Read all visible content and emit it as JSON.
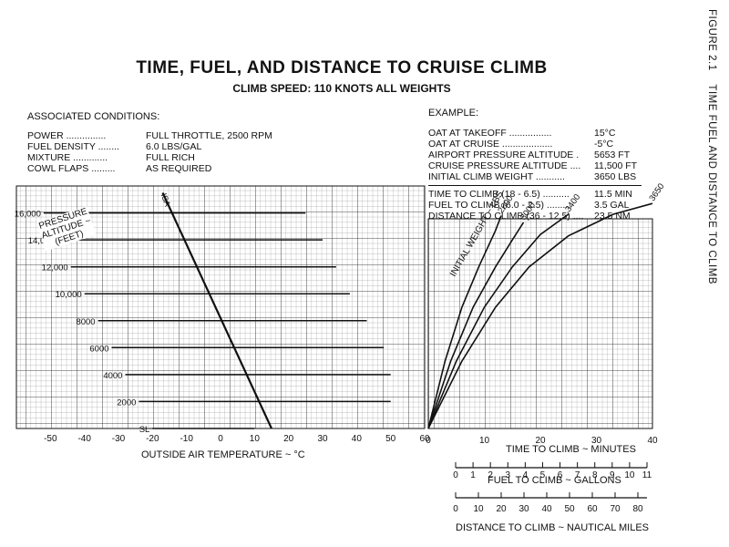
{
  "figure_side": {
    "number": "FIGURE 2.1",
    "caption": "TIME FUEL AND DISTANCE TO CLIMB"
  },
  "header": {
    "title": "TIME, FUEL, AND DISTANCE TO CRUISE CLIMB",
    "subtitle": "CLIMB SPEED: 110 KNOTS  ALL WEIGHTS"
  },
  "associated_conditions": {
    "heading": "ASSOCIATED CONDITIONS:",
    "rows": [
      {
        "label": "POWER ...............",
        "value": "FULL THROTTLE, 2500 RPM"
      },
      {
        "label": "FUEL DENSITY ........",
        "value": "6.0 LBS/GAL"
      },
      {
        "label": "MIXTURE .............",
        "value": "FULL RICH"
      },
      {
        "label": "COWL FLAPS .........",
        "value": "AS REQUIRED"
      }
    ]
  },
  "example": {
    "heading": "EXAMPLE:",
    "rows": [
      {
        "label": "OAT AT TAKEOFF ................",
        "value": "15°C"
      },
      {
        "label": "OAT AT CRUISE ...................",
        "value": "-5°C"
      },
      {
        "label": "AIRPORT PRESSURE ALTITUDE .",
        "value": "5653 FT"
      },
      {
        "label": "CRUISE PRESSURE ALTITUDE ....",
        "value": "11,500 FT"
      },
      {
        "label": "INITIAL CLIMB WEIGHT ...........",
        "value": "3650 LBS"
      }
    ],
    "results": [
      {
        "label": "TIME TO CLIMB (18 - 6.5) ..........",
        "value": "11.5 MIN"
      },
      {
        "label": "FUEL TO CLIMB (6.0 - 2.5) .........",
        "value": "3.5 GAL"
      },
      {
        "label": "DISTANCE TO CLIMB (36 - 12.5) ....",
        "value": "23.5 NM"
      }
    ]
  },
  "chart_data": [
    {
      "type": "line",
      "panel": "oat_vs_pressure_altitude",
      "xlabel": "OUTSIDE AIR TEMPERATURE ~ °C",
      "ylabel": "PRESSURE ALTITUDE ~ (FEET)",
      "x_ticks": [
        "-50",
        "-40",
        "-30",
        "-20",
        "-10",
        "0",
        "10",
        "20",
        "30",
        "40",
        "50",
        "60"
      ],
      "altitude_labels": [
        "SL",
        "2000",
        "4000",
        "6000",
        "8000",
        "10,000",
        "12,000",
        "14,000",
        "16,000"
      ],
      "isa_label": "ISA",
      "series": [
        {
          "name": "SL",
          "points": [
            [
              -20,
              0
            ],
            [
              10,
              0
            ]
          ]
        },
        {
          "name": "2000",
          "points": [
            [
              -24,
              2000
            ],
            [
              50,
              2000
            ]
          ]
        },
        {
          "name": "4000",
          "points": [
            [
              -28,
              4000
            ],
            [
              50,
              4000
            ]
          ]
        },
        {
          "name": "6000",
          "points": [
            [
              -32,
              6000
            ],
            [
              48,
              6000
            ]
          ]
        },
        {
          "name": "8000",
          "points": [
            [
              -36,
              8000
            ],
            [
              43,
              8000
            ]
          ]
        },
        {
          "name": "10,000",
          "points": [
            [
              -40,
              10000
            ],
            [
              38,
              10000
            ]
          ]
        },
        {
          "name": "12,000",
          "points": [
            [
              -44,
              12000
            ],
            [
              34,
              12000
            ]
          ]
        },
        {
          "name": "14,000",
          "points": [
            [
              -48,
              14000
            ],
            [
              30,
              14000
            ]
          ]
        },
        {
          "name": "16,000",
          "points": [
            [
              -52,
              16000
            ],
            [
              25,
              16000
            ]
          ]
        },
        {
          "name": "ISA",
          "points": [
            [
              -17,
              17500
            ],
            [
              15,
              0
            ]
          ]
        }
      ],
      "xlim": [
        -60,
        60
      ],
      "ylim": [
        0,
        18000
      ]
    },
    {
      "type": "line",
      "panel": "weight_to_time_to_climb",
      "title": "INITIAL WEIGHT ~ LBS",
      "xlabel": "TIME TO CLIMB ~ MINUTES",
      "x_ticks": [
        "0",
        "10",
        "20",
        "30",
        "40"
      ],
      "series": [
        {
          "name": "2600",
          "points": [
            [
              0,
              0
            ],
            [
              3,
              5000
            ],
            [
              6,
              9000
            ],
            [
              9,
              12000
            ],
            [
              12,
              14700
            ],
            [
              13,
              15800
            ]
          ]
        },
        {
          "name": "3000",
          "points": [
            [
              0,
              0
            ],
            [
              4,
              5000
            ],
            [
              8,
              9000
            ],
            [
              12,
              12000
            ],
            [
              15,
              14000
            ],
            [
              17,
              15300
            ]
          ]
        },
        {
          "name": "3400",
          "points": [
            [
              0,
              0
            ],
            [
              5,
              5000
            ],
            [
              10,
              9000
            ],
            [
              15,
              12000
            ],
            [
              20,
              14400
            ],
            [
              25,
              15900
            ]
          ]
        },
        {
          "name": "3650",
          "points": [
            [
              0,
              0
            ],
            [
              6,
              5000
            ],
            [
              12,
              9000
            ],
            [
              18,
              12000
            ],
            [
              25,
              14300
            ],
            [
              33,
              15900
            ],
            [
              40,
              16700
            ]
          ]
        }
      ],
      "xlim": [
        0,
        40
      ]
    },
    {
      "type": "scale",
      "panel": "fuel_to_climb",
      "xlabel": "FUEL TO CLIMB ~ GALLONS",
      "x_ticks": [
        "0",
        "1",
        "2",
        "3",
        "4",
        "5",
        "6",
        "7",
        "8",
        "9",
        "10",
        "11"
      ],
      "xlim": [
        0,
        11
      ]
    },
    {
      "type": "scale",
      "panel": "distance_to_climb",
      "xlabel": "DISTANCE TO CLIMB ~ NAUTICAL MILES",
      "x_ticks": [
        "0",
        "10",
        "20",
        "30",
        "40",
        "50",
        "60",
        "70",
        "80"
      ],
      "xlim": [
        0,
        80
      ]
    }
  ]
}
